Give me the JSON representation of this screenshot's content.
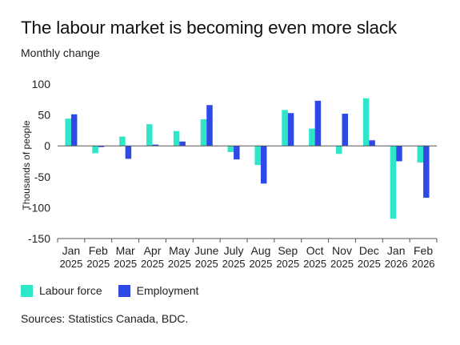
{
  "colors": {
    "labour_force": "#2ee6c8",
    "employment": "#2f49e6",
    "axis": "#555555",
    "text": "#222222"
  },
  "title": "The labour market is becoming even more slack",
  "subtitle": "Monthly change",
  "source": "Sources: Statistics Canada, BDC.",
  "chart_data": {
    "type": "bar",
    "title": "The labour market is becoming even more slack",
    "subtitle": "Monthly change",
    "xlabel": "",
    "ylabel": "Thousands of people",
    "ylim": [
      -150,
      100
    ],
    "yticks": [
      100,
      50,
      0,
      -50,
      -100,
      -150
    ],
    "ytick_labels": [
      "100",
      "50",
      "0",
      "-50",
      "-100",
      "-150"
    ],
    "categories": [
      [
        "Jan",
        "2025"
      ],
      [
        "Feb",
        "2025"
      ],
      [
        "Mar",
        "2025"
      ],
      [
        "Apr",
        "2025"
      ],
      [
        "May",
        "2025"
      ],
      [
        "June",
        "2025"
      ],
      [
        "July",
        "2025"
      ],
      [
        "Aug",
        "2025"
      ],
      [
        "Sep",
        "2025"
      ],
      [
        "Oct",
        "2025"
      ],
      [
        "Nov",
        "2025"
      ],
      [
        "Dec",
        "2025"
      ],
      [
        "Jan",
        "2026"
      ],
      [
        "Feb",
        "2026"
      ]
    ],
    "series": [
      {
        "name": "Labour force",
        "values": [
          44,
          -12,
          15,
          35,
          24,
          43,
          -10,
          -31,
          58,
          28,
          -13,
          77,
          -118,
          -27
        ]
      },
      {
        "name": "Employment",
        "values": [
          51,
          -2,
          -21,
          2,
          7,
          66,
          -22,
          -61,
          53,
          73,
          52,
          9,
          -25,
          -84
        ]
      }
    ],
    "legend": "bottom-left",
    "grid": false
  }
}
